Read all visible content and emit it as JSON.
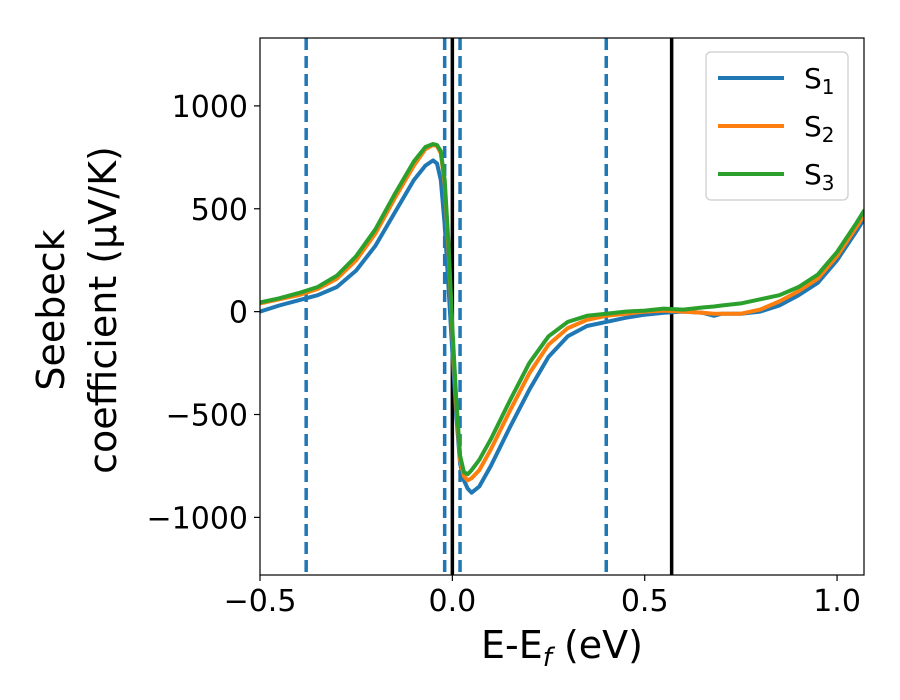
{
  "chart_data": {
    "type": "line",
    "xlabel": "E-E",
    "xlabel_sub": "f",
    "xlabel_unit": " (eV)",
    "ylabel_line1": "Seebeck",
    "ylabel_line2": "coefficient  (μV/K)",
    "xlim": [
      -0.5,
      1.07
    ],
    "ylim": [
      -1280,
      1330
    ],
    "x_ticks": [
      -0.5,
      0.0,
      0.5,
      1.0
    ],
    "x_tick_labels": [
      "−0.5",
      "0.0",
      "0.5",
      "1.0"
    ],
    "y_ticks": [
      -1000,
      -500,
      0,
      500,
      1000
    ],
    "y_tick_labels": [
      "−1000",
      "−500",
      "0",
      "500",
      "1000"
    ],
    "grid": false,
    "legend_position": "top-right",
    "dashed_vlines": [
      -0.38,
      -0.02,
      0.02,
      0.4
    ],
    "dashed_color": "#1f77b4",
    "solid_vlines": [
      0.0,
      0.57
    ],
    "solid_color": "#000000",
    "series": [
      {
        "name": "S",
        "sub": "1",
        "color": "#1f77b4",
        "x": [
          -0.5,
          -0.45,
          -0.4,
          -0.35,
          -0.3,
          -0.25,
          -0.2,
          -0.15,
          -0.1,
          -0.07,
          -0.05,
          -0.04,
          -0.03,
          -0.02,
          -0.01,
          0.0,
          0.01,
          0.02,
          0.03,
          0.04,
          0.05,
          0.07,
          0.1,
          0.15,
          0.2,
          0.25,
          0.3,
          0.35,
          0.4,
          0.45,
          0.5,
          0.55,
          0.6,
          0.65,
          0.68,
          0.7,
          0.75,
          0.8,
          0.85,
          0.9,
          0.95,
          1.0,
          1.05,
          1.07
        ],
        "y": [
          0,
          30,
          55,
          80,
          120,
          200,
          320,
          480,
          640,
          710,
          735,
          720,
          640,
          420,
          120,
          -200,
          -500,
          -740,
          -820,
          -860,
          -880,
          -850,
          -750,
          -560,
          -380,
          -220,
          -120,
          -70,
          -50,
          -30,
          -15,
          -5,
          0,
          -5,
          -20,
          -10,
          -10,
          0,
          30,
          80,
          140,
          250,
          390,
          450
        ]
      },
      {
        "name": "S",
        "sub": "2",
        "color": "#ff7f0e",
        "x": [
          -0.5,
          -0.45,
          -0.4,
          -0.35,
          -0.3,
          -0.25,
          -0.2,
          -0.15,
          -0.1,
          -0.07,
          -0.05,
          -0.04,
          -0.03,
          -0.02,
          -0.01,
          0.0,
          0.01,
          0.02,
          0.03,
          0.04,
          0.05,
          0.07,
          0.1,
          0.15,
          0.2,
          0.25,
          0.3,
          0.35,
          0.4,
          0.45,
          0.5,
          0.55,
          0.6,
          0.65,
          0.68,
          0.7,
          0.75,
          0.8,
          0.85,
          0.9,
          0.95,
          1.0,
          1.05,
          1.07
        ],
        "y": [
          40,
          60,
          80,
          110,
          160,
          250,
          380,
          550,
          710,
          790,
          810,
          805,
          770,
          620,
          300,
          -100,
          -450,
          -720,
          -800,
          -820,
          -810,
          -770,
          -670,
          -480,
          -300,
          -160,
          -80,
          -40,
          -20,
          -10,
          0,
          5,
          0,
          -5,
          -10,
          -10,
          -10,
          10,
          50,
          100,
          160,
          270,
          410,
          470
        ]
      },
      {
        "name": "S",
        "sub": "3",
        "color": "#2ca02c",
        "x": [
          -0.5,
          -0.45,
          -0.4,
          -0.35,
          -0.3,
          -0.25,
          -0.2,
          -0.15,
          -0.1,
          -0.07,
          -0.05,
          -0.04,
          -0.03,
          -0.02,
          -0.01,
          0.0,
          0.01,
          0.02,
          0.03,
          0.04,
          0.05,
          0.07,
          0.1,
          0.15,
          0.2,
          0.25,
          0.3,
          0.35,
          0.4,
          0.45,
          0.5,
          0.55,
          0.6,
          0.65,
          0.68,
          0.7,
          0.75,
          0.8,
          0.85,
          0.9,
          0.95,
          1.0,
          1.05,
          1.07
        ],
        "y": [
          45,
          65,
          90,
          120,
          175,
          270,
          400,
          570,
          730,
          800,
          815,
          810,
          780,
          640,
          330,
          -80,
          -420,
          -700,
          -780,
          -790,
          -770,
          -720,
          -620,
          -430,
          -250,
          -120,
          -50,
          -20,
          -10,
          0,
          5,
          15,
          10,
          20,
          25,
          30,
          40,
          60,
          80,
          120,
          180,
          290,
          430,
          490
        ]
      }
    ]
  }
}
